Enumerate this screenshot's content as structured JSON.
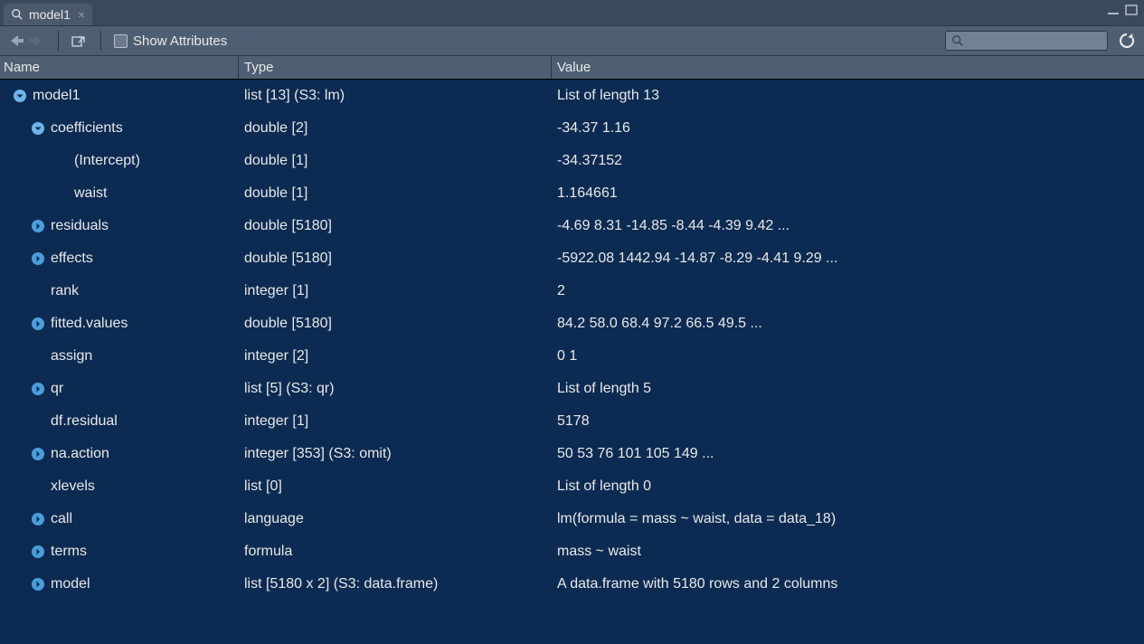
{
  "colors": {
    "bg": "#0d2b52",
    "panel": "#4e5f73",
    "tabbar": "#3a4a5c",
    "text": "#e8e8e8",
    "expander_open": "#6bb5e8",
    "expander_closed": "#4a9edb"
  },
  "tab": {
    "title": "model1"
  },
  "toolbar": {
    "show_attributes_label": "Show Attributes"
  },
  "columns": {
    "name": "Name",
    "type": "Type",
    "value": "Value"
  },
  "rows": [
    {
      "indent": 1,
      "expander": "open",
      "name": "model1",
      "type": "list [13] (S3: lm)",
      "value": "List of length 13"
    },
    {
      "indent": 2,
      "expander": "open",
      "name": "coefficients",
      "type": "double [2]",
      "value": "-34.37 1.16"
    },
    {
      "indent": 3,
      "expander": "none",
      "name": "(Intercept)",
      "type": "double [1]",
      "value": "-34.37152"
    },
    {
      "indent": 3,
      "expander": "none",
      "name": "waist",
      "type": "double [1]",
      "value": "1.164661"
    },
    {
      "indent": 2,
      "expander": "closed",
      "name": "residuals",
      "type": "double [5180]",
      "value": "-4.69 8.31 -14.85 -8.44 -4.39 9.42 ..."
    },
    {
      "indent": 2,
      "expander": "closed",
      "name": "effects",
      "type": "double [5180]",
      "value": "-5922.08 1442.94 -14.87 -8.29 -4.41 9.29 ..."
    },
    {
      "indent": 2,
      "expander": "none",
      "name": "rank",
      "type": "integer [1]",
      "value": "2"
    },
    {
      "indent": 2,
      "expander": "closed",
      "name": "fitted.values",
      "type": "double [5180]",
      "value": "84.2 58.0 68.4 97.2 66.5 49.5 ..."
    },
    {
      "indent": 2,
      "expander": "none",
      "name": "assign",
      "type": "integer [2]",
      "value": "0 1"
    },
    {
      "indent": 2,
      "expander": "closed",
      "name": "qr",
      "type": "list [5] (S3: qr)",
      "value": "List of length 5"
    },
    {
      "indent": 2,
      "expander": "none",
      "name": "df.residual",
      "type": "integer [1]",
      "value": "5178"
    },
    {
      "indent": 2,
      "expander": "closed",
      "name": "na.action",
      "type": "integer [353] (S3: omit)",
      "value": "50 53 76 101 105 149 ..."
    },
    {
      "indent": 2,
      "expander": "none",
      "name": "xlevels",
      "type": "list [0]",
      "value": "List of length 0"
    },
    {
      "indent": 2,
      "expander": "closed",
      "name": "call",
      "type": "language",
      "value": "lm(formula = mass ~ waist, data = data_18)"
    },
    {
      "indent": 2,
      "expander": "closed",
      "name": "terms",
      "type": "formula",
      "value": "mass ~ waist"
    },
    {
      "indent": 2,
      "expander": "closed",
      "name": "model",
      "type": "list [5180 x 2] (S3: data.frame)",
      "value": "A data.frame with 5180 rows and 2 columns"
    }
  ]
}
